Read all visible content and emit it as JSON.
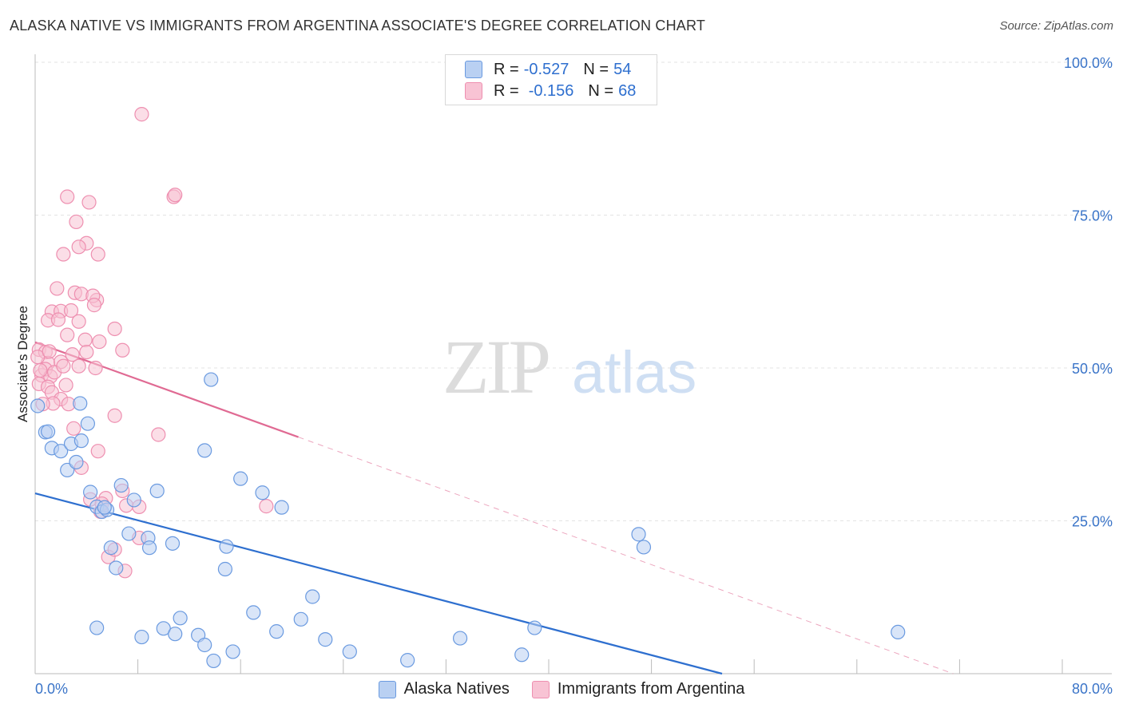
{
  "title": "ALASKA NATIVE VS IMMIGRANTS FROM ARGENTINA ASSOCIATE'S DEGREE CORRELATION CHART",
  "source": "Source: ZipAtlas.com",
  "watermark": {
    "zip": "ZIP",
    "atlas": "atlas"
  },
  "legend": {
    "r_label": "R =",
    "n_label": "N =",
    "rows": [
      {
        "r": "-0.527",
        "n": "54"
      },
      {
        "r": "-0.156",
        "n": "68"
      }
    ]
  },
  "chart_data": {
    "type": "scatter",
    "title": "ALASKA NATIVE VS IMMIGRANTS FROM ARGENTINA ASSOCIATE'S DEGREE CORRELATION CHART",
    "xlabel": "",
    "ylabel": "Associate's Degree",
    "xlim": [
      0,
      80
    ],
    "ylim": [
      0,
      100
    ],
    "x_tick_labels": [
      {
        "v": 0,
        "t": "0.0%"
      },
      {
        "v": 80,
        "t": "80.0%"
      }
    ],
    "y_tick_labels": [
      {
        "v": 100,
        "t": "100.0%"
      },
      {
        "v": 75,
        "t": "75.0%"
      },
      {
        "v": 50,
        "t": "50.0%"
      },
      {
        "v": 25,
        "t": "25.0%"
      }
    ],
    "colors": {
      "blue": "#6a9ae0",
      "blue_fill": "#b9d0f2",
      "blue_line": "#2e6fcf",
      "pink": "#ee8fb0",
      "pink_fill": "#f8c3d4",
      "pink_line": "#e06a93",
      "grid": "#e3e3e3",
      "tick_text": "#3a74c8"
    },
    "series": [
      {
        "name": "Alaska Natives",
        "r": -0.527,
        "n": 54,
        "trend": {
          "x0": 0,
          "y0": 29.5,
          "x1": 53.5,
          "y1": 0
        },
        "points": [
          [
            0.2,
            43.8
          ],
          [
            0.8,
            39.5
          ],
          [
            1.3,
            36.9
          ],
          [
            2.0,
            36.4
          ],
          [
            2.5,
            33.3
          ],
          [
            2.8,
            37.6
          ],
          [
            4.1,
            40.9
          ],
          [
            3.6,
            38.1
          ],
          [
            3.2,
            34.6
          ],
          [
            3.5,
            44.2
          ],
          [
            4.3,
            29.7
          ],
          [
            4.8,
            27.3
          ],
          [
            5.2,
            26.5
          ],
          [
            5.6,
            26.8
          ],
          [
            6.7,
            30.8
          ],
          [
            7.7,
            28.4
          ],
          [
            9.5,
            29.9
          ],
          [
            5.9,
            20.6
          ],
          [
            7.3,
            22.9
          ],
          [
            8.8,
            22.2
          ],
          [
            8.9,
            20.6
          ],
          [
            10.7,
            21.3
          ],
          [
            6.3,
            17.3
          ],
          [
            14.9,
            20.8
          ],
          [
            14.8,
            17.1
          ],
          [
            13.7,
            48.1
          ],
          [
            13.2,
            36.5
          ],
          [
            16.0,
            31.9
          ],
          [
            17.7,
            29.6
          ],
          [
            19.2,
            27.2
          ],
          [
            4.8,
            7.5
          ],
          [
            8.3,
            6.0
          ],
          [
            10.0,
            7.4
          ],
          [
            10.9,
            6.5
          ],
          [
            11.3,
            9.1
          ],
          [
            12.7,
            6.3
          ],
          [
            13.2,
            4.7
          ],
          [
            13.9,
            2.1
          ],
          [
            15.4,
            3.6
          ],
          [
            17.0,
            10.0
          ],
          [
            18.8,
            6.9
          ],
          [
            20.7,
            8.9
          ],
          [
            21.6,
            12.6
          ],
          [
            22.6,
            5.6
          ],
          [
            24.5,
            3.6
          ],
          [
            29.0,
            2.2
          ],
          [
            33.1,
            5.8
          ],
          [
            37.9,
            3.1
          ],
          [
            38.9,
            7.5
          ],
          [
            47.0,
            22.8
          ],
          [
            47.4,
            20.7
          ],
          [
            67.2,
            6.8
          ],
          [
            1.0,
            39.6
          ],
          [
            5.4,
            27.2
          ]
        ]
      },
      {
        "name": "Immigrants from Argentina",
        "r": -0.156,
        "n": 68,
        "trend": {
          "x0": 0,
          "y0": 54.2,
          "x1": 20.5,
          "y1": 38.7
        },
        "trend_extension": {
          "x0": 20.5,
          "y0": 38.7,
          "x1": 71.5,
          "y1": 0
        },
        "points": [
          [
            8.3,
            91.5
          ],
          [
            2.5,
            78.0
          ],
          [
            4.2,
            77.1
          ],
          [
            10.8,
            78.0
          ],
          [
            10.9,
            78.3
          ],
          [
            3.2,
            73.9
          ],
          [
            4.0,
            70.4
          ],
          [
            3.4,
            69.8
          ],
          [
            4.9,
            68.6
          ],
          [
            2.2,
            68.6
          ],
          [
            1.7,
            63.0
          ],
          [
            3.1,
            62.3
          ],
          [
            3.6,
            62.1
          ],
          [
            4.8,
            61.1
          ],
          [
            4.5,
            61.8
          ],
          [
            4.6,
            60.3
          ],
          [
            1.3,
            59.2
          ],
          [
            2.0,
            59.3
          ],
          [
            2.8,
            59.4
          ],
          [
            3.4,
            57.6
          ],
          [
            1.0,
            57.8
          ],
          [
            1.8,
            57.9
          ],
          [
            2.5,
            55.4
          ],
          [
            3.9,
            54.6
          ],
          [
            4.0,
            52.6
          ],
          [
            5.0,
            54.3
          ],
          [
            6.2,
            56.4
          ],
          [
            6.8,
            52.9
          ],
          [
            0.3,
            53.0
          ],
          [
            0.8,
            52.6
          ],
          [
            1.0,
            50.8
          ],
          [
            2.0,
            51.0
          ],
          [
            2.9,
            52.2
          ],
          [
            0.2,
            51.8
          ],
          [
            0.5,
            48.8
          ],
          [
            0.8,
            49.8
          ],
          [
            1.2,
            48.6
          ],
          [
            1.5,
            49.3
          ],
          [
            2.4,
            47.2
          ],
          [
            3.4,
            50.3
          ],
          [
            4.7,
            50.0
          ],
          [
            0.3,
            47.4
          ],
          [
            1.0,
            46.9
          ],
          [
            1.3,
            46.0
          ],
          [
            2.0,
            44.9
          ],
          [
            2.6,
            44.1
          ],
          [
            1.4,
            44.2
          ],
          [
            6.2,
            42.2
          ],
          [
            9.6,
            39.1
          ],
          [
            3.0,
            40.1
          ],
          [
            4.9,
            36.4
          ],
          [
            3.6,
            33.7
          ],
          [
            4.3,
            28.5
          ],
          [
            5.5,
            28.7
          ],
          [
            6.8,
            29.9
          ],
          [
            7.1,
            27.5
          ],
          [
            8.1,
            27.3
          ],
          [
            5.1,
            26.5
          ],
          [
            18.0,
            27.4
          ],
          [
            5.7,
            19.1
          ],
          [
            6.2,
            20.3
          ],
          [
            7.0,
            16.8
          ],
          [
            8.1,
            22.2
          ],
          [
            0.6,
            44.1
          ],
          [
            0.4,
            49.6
          ],
          [
            1.1,
            52.7
          ],
          [
            2.2,
            50.3
          ],
          [
            5.2,
            27.8
          ]
        ]
      }
    ]
  }
}
